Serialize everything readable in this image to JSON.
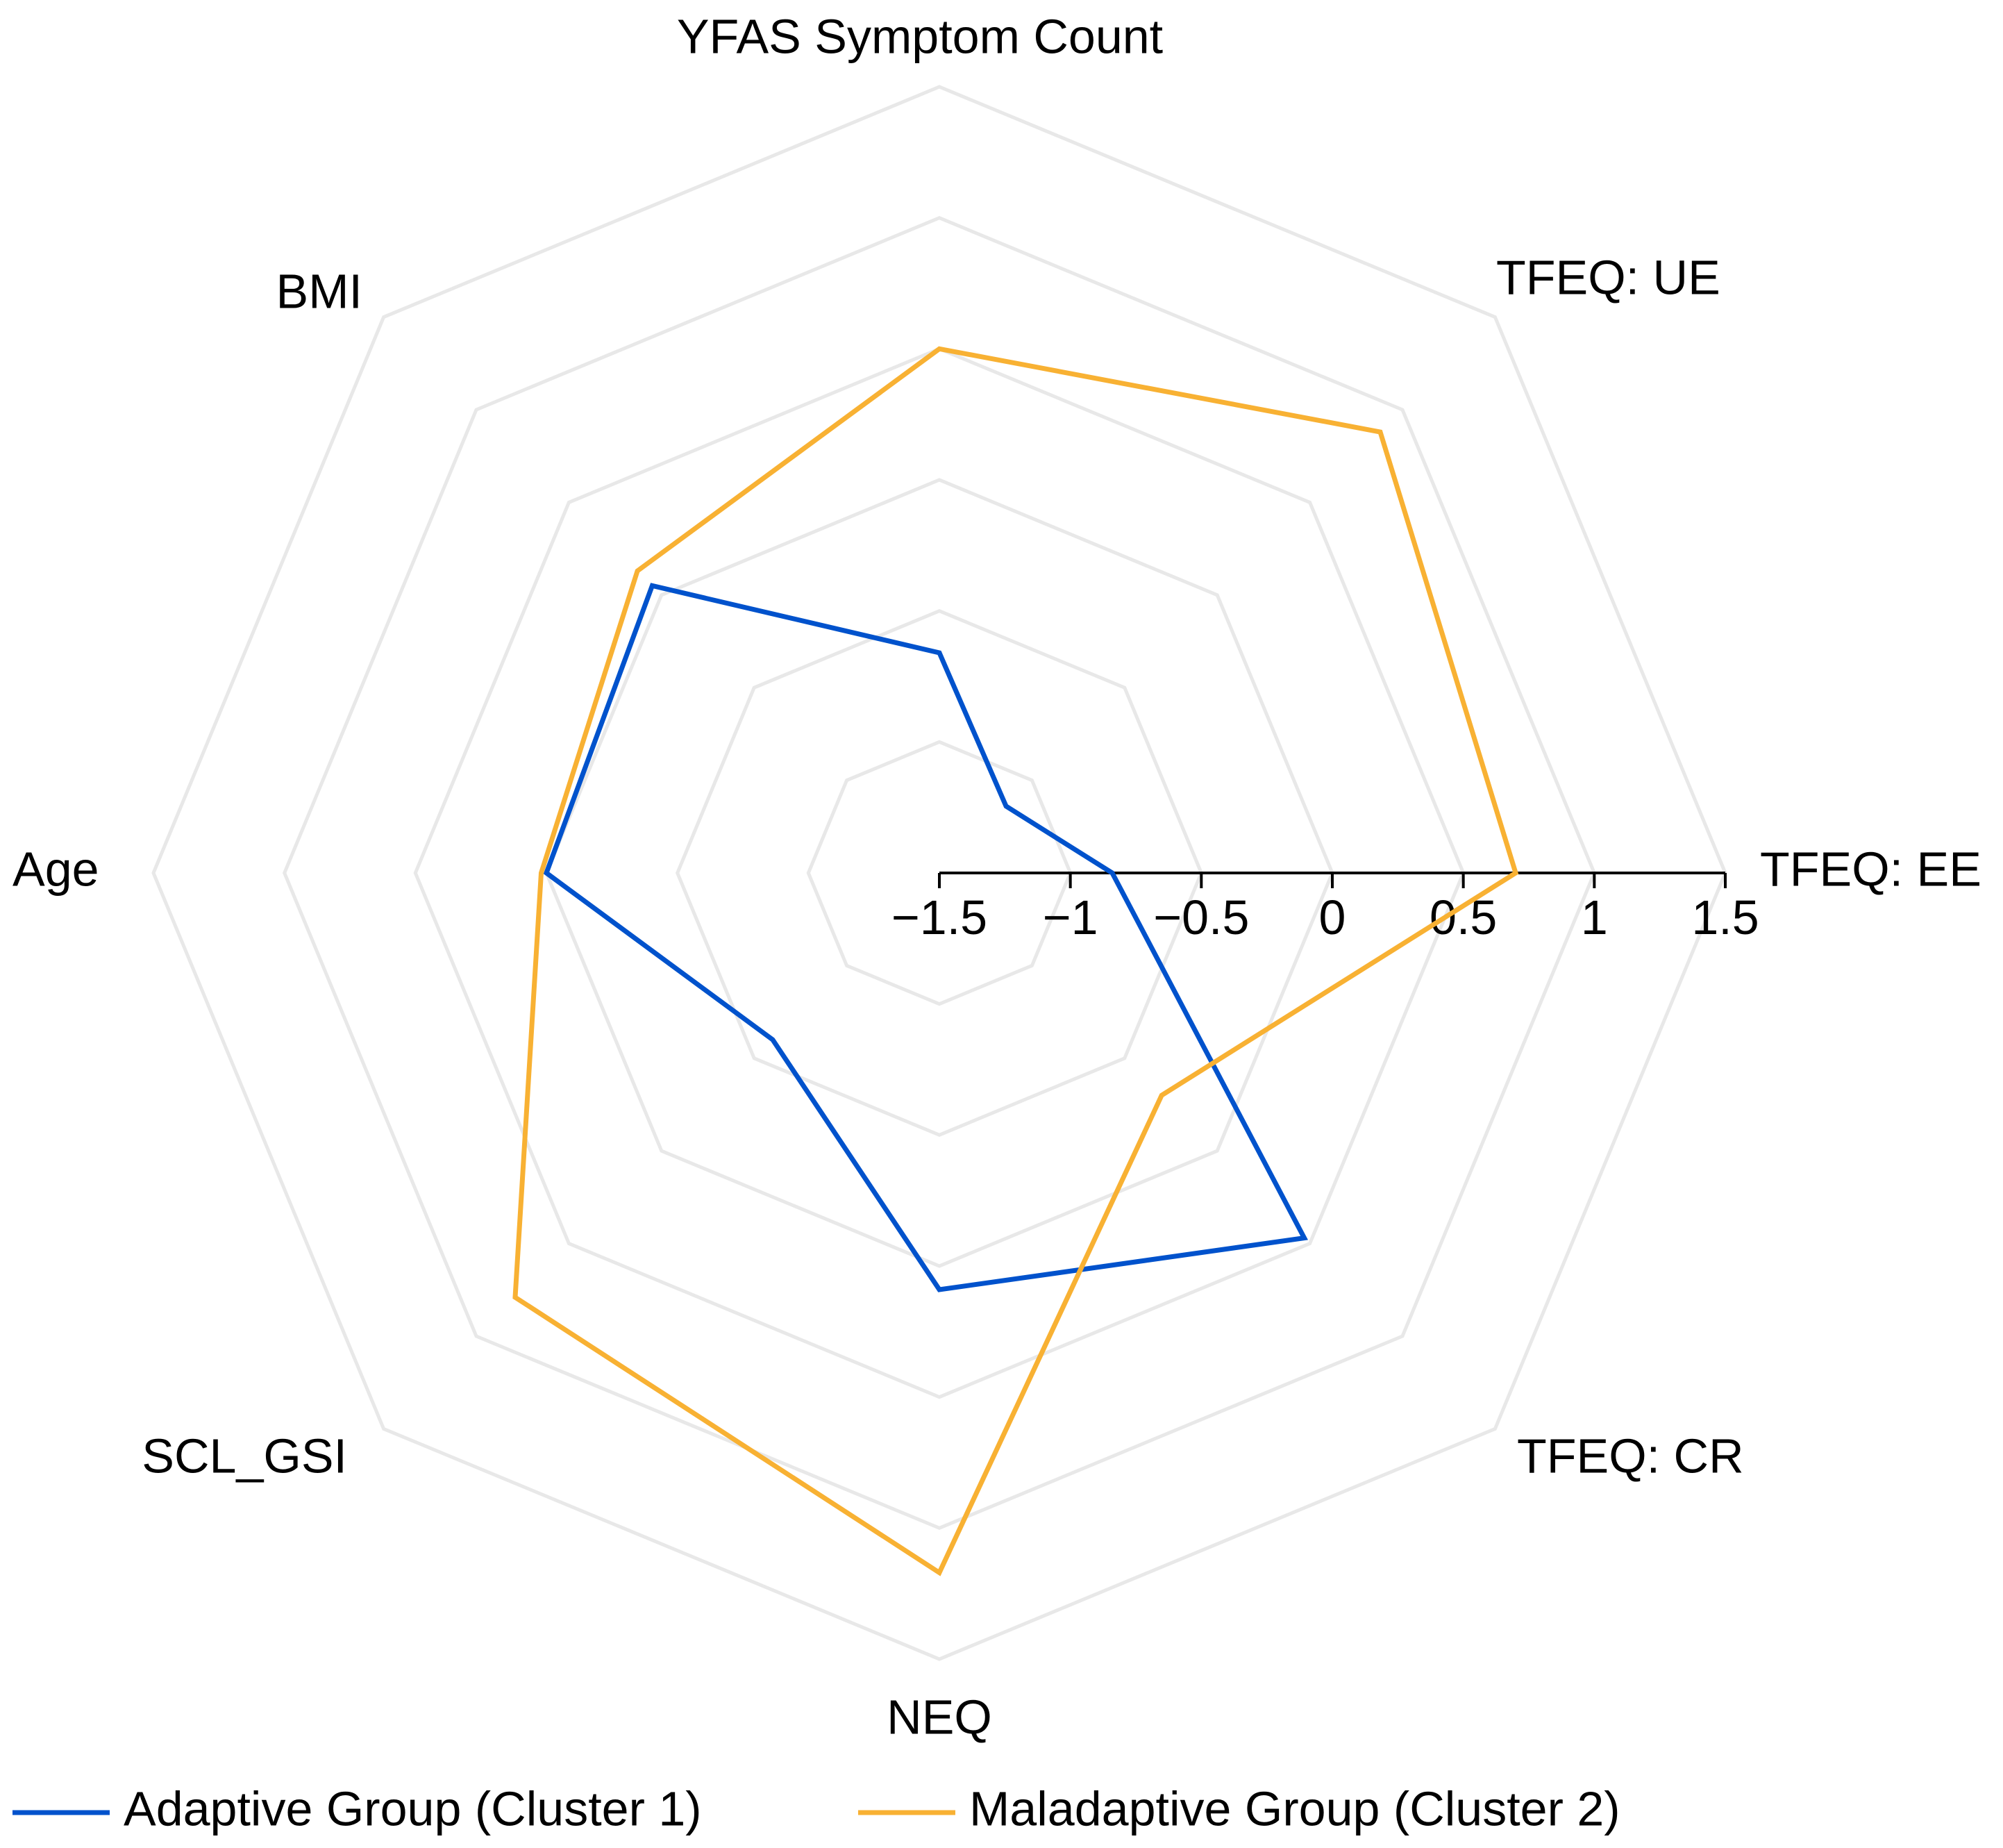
{
  "chart_data": {
    "type": "radar",
    "title": "",
    "axes": [
      "TFEQ: EE",
      "TFEQ: UE",
      "YFAS Symptom Count",
      "BMI",
      "Age",
      "SCL_GSI",
      "NEQ",
      "TFEQ: CR"
    ],
    "range": [
      -1.5,
      1.5
    ],
    "grid_rings": [
      -1.5,
      -1.0,
      -0.5,
      0.0,
      0.5,
      1.0,
      1.5
    ],
    "tick_values": [
      -1.5,
      -1,
      -0.5,
      0,
      0.5,
      1,
      1.5
    ],
    "tick_labels": [
      "−1.5",
      "−1",
      "−0.5",
      "0",
      "0.5",
      "1",
      "1.5"
    ],
    "series": [
      {
        "name": "Adaptive Group (Cluster 1)",
        "color": "#0052CC",
        "values": [
          -0.84,
          -1.14,
          -0.66,
          0.05,
          0.0,
          -0.6,
          0.09,
          0.47
        ]
      },
      {
        "name": "Maladaptive Group (Cluster 2)",
        "color": "#F8B133",
        "values": [
          0.7,
          0.88,
          0.5,
          0.13,
          0.02,
          0.79,
          1.17,
          -0.3
        ]
      }
    ],
    "legend_position": "bottom"
  },
  "colors": {
    "grid": "#e8e8e8",
    "axis": "#000000"
  }
}
